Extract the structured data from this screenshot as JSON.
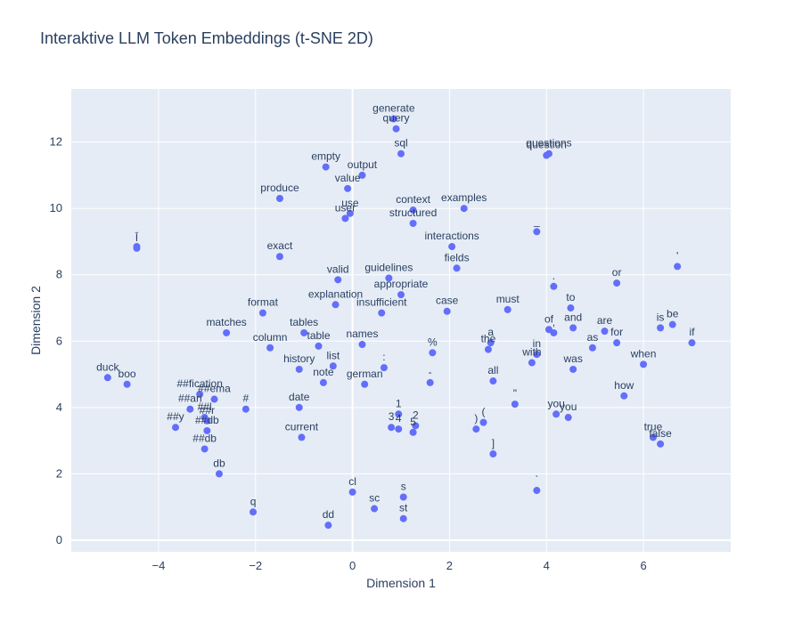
{
  "chart_data": {
    "type": "scatter",
    "title": "Interaktive LLM Token Embeddings (t-SNE 2D)",
    "xlabel": "Dimension 1",
    "ylabel": "Dimension 2",
    "xlim": [
      -5.8,
      7.8
    ],
    "ylim": [
      -0.35,
      13.6
    ],
    "xticks": [
      -4,
      -2,
      0,
      2,
      4,
      6
    ],
    "yticks": [
      0,
      2,
      4,
      6,
      8,
      10,
      12
    ],
    "xtick_labels": [
      "−4",
      "−2",
      "0",
      "2",
      "4",
      "6"
    ],
    "ytick_labels": [
      "0",
      "2",
      "4",
      "6",
      "8",
      "10",
      "12"
    ],
    "grid": true,
    "legend": "none",
    "colors": {
      "marker": "#636efa",
      "plot_bg": "#e5ecf6",
      "grid": "#ffffff",
      "text": "#2a3f5f"
    },
    "points": [
      {
        "label": "generate",
        "x": 0.85,
        "y": 12.7
      },
      {
        "label": "query",
        "x": 0.9,
        "y": 12.4
      },
      {
        "label": "sql",
        "x": 1.0,
        "y": 11.65
      },
      {
        "label": "questions",
        "x": 4.05,
        "y": 11.65
      },
      {
        "label": "question",
        "x": 4.0,
        "y": 11.6
      },
      {
        "label": "empty",
        "x": -0.55,
        "y": 11.25
      },
      {
        "label": "output",
        "x": 0.2,
        "y": 11.0
      },
      {
        "label": "value",
        "x": -0.1,
        "y": 10.6
      },
      {
        "label": "produce",
        "x": -1.5,
        "y": 10.3
      },
      {
        "label": "examples",
        "x": 2.3,
        "y": 10.0
      },
      {
        "label": "context",
        "x": 1.25,
        "y": 9.95
      },
      {
        "label": "use",
        "x": -0.05,
        "y": 9.85
      },
      {
        "label": "user",
        "x": -0.15,
        "y": 9.7
      },
      {
        "label": "structured",
        "x": 1.25,
        "y": 9.55
      },
      {
        "label": "_",
        "x": 3.8,
        "y": 9.3
      },
      {
        "label": "ī",
        "x": -4.45,
        "y": 8.85
      },
      {
        "label": "i",
        "x": -4.45,
        "y": 8.8
      },
      {
        "label": "interactions",
        "x": 2.05,
        "y": 8.85
      },
      {
        "label": "exact",
        "x": -1.5,
        "y": 8.55
      },
      {
        "label": "'",
        "x": 6.7,
        "y": 8.25
      },
      {
        "label": "fields",
        "x": 2.15,
        "y": 8.2
      },
      {
        "label": "guidelines",
        "x": 0.75,
        "y": 7.9
      },
      {
        "label": "valid",
        "x": -0.3,
        "y": 7.85
      },
      {
        "label": "or",
        "x": 5.45,
        "y": 7.75
      },
      {
        "label": ".",
        "x": 4.15,
        "y": 7.65
      },
      {
        "label": "appropriate",
        "x": 1.0,
        "y": 7.4
      },
      {
        "label": "to",
        "x": 4.5,
        "y": 7.0
      },
      {
        "label": "explanation",
        "x": -0.35,
        "y": 7.1
      },
      {
        "label": "must",
        "x": 3.2,
        "y": 6.95
      },
      {
        "label": "insufficient",
        "x": 0.6,
        "y": 6.85
      },
      {
        "label": "case",
        "x": 1.95,
        "y": 6.9
      },
      {
        "label": "format",
        "x": -1.85,
        "y": 6.85
      },
      {
        "label": "be",
        "x": 6.6,
        "y": 6.5
      },
      {
        "label": "is",
        "x": 6.35,
        "y": 6.4
      },
      {
        "label": "and",
        "x": 4.55,
        "y": 6.4
      },
      {
        "label": "of",
        "x": 4.05,
        "y": 6.35
      },
      {
        "label": ",",
        "x": 4.15,
        "y": 6.25
      },
      {
        "label": "are",
        "x": 5.2,
        "y": 6.3
      },
      {
        "label": "matches",
        "x": -2.6,
        "y": 6.25
      },
      {
        "label": "tables",
        "x": -1.0,
        "y": 6.25
      },
      {
        "label": "if",
        "x": 7.0,
        "y": 5.95
      },
      {
        "label": "for",
        "x": 5.45,
        "y": 5.95
      },
      {
        "label": "names",
        "x": 0.2,
        "y": 5.9
      },
      {
        "label": "table",
        "x": -0.7,
        "y": 5.85
      },
      {
        "label": "a",
        "x": 2.85,
        "y": 5.95
      },
      {
        "label": "the",
        "x": 2.8,
        "y": 5.75
      },
      {
        "label": "as",
        "x": 4.95,
        "y": 5.8
      },
      {
        "label": "column",
        "x": -1.7,
        "y": 5.8
      },
      {
        "label": "in",
        "x": 3.8,
        "y": 5.6
      },
      {
        "label": "with",
        "x": 3.7,
        "y": 5.35
      },
      {
        "label": "%",
        "x": 1.65,
        "y": 5.65
      },
      {
        "label": "when",
        "x": 6.0,
        "y": 5.3
      },
      {
        "label": "list",
        "x": -0.4,
        "y": 5.25
      },
      {
        "label": ":",
        "x": 0.65,
        "y": 5.2
      },
      {
        "label": "history",
        "x": -1.1,
        "y": 5.15
      },
      {
        "label": "was",
        "x": 4.55,
        "y": 5.15
      },
      {
        "label": "duck",
        "x": -5.05,
        "y": 4.9
      },
      {
        "label": "all",
        "x": 2.9,
        "y": 4.8
      },
      {
        "label": "-",
        "x": 1.6,
        "y": 4.75
      },
      {
        "label": "note",
        "x": -0.6,
        "y": 4.75
      },
      {
        "label": "german",
        "x": 0.25,
        "y": 4.7
      },
      {
        "label": "boo",
        "x": -4.65,
        "y": 4.7
      },
      {
        "label": "##fication",
        "x": -3.15,
        "y": 4.4
      },
      {
        "label": "how",
        "x": 5.6,
        "y": 4.35
      },
      {
        "label": "##ema",
        "x": -2.85,
        "y": 4.25
      },
      {
        "label": "\"",
        "x": 3.35,
        "y": 4.1
      },
      {
        "label": "##ari",
        "x": -3.35,
        "y": 3.95
      },
      {
        "label": "date",
        "x": -1.1,
        "y": 4.0
      },
      {
        "label": "#",
        "x": -2.2,
        "y": 3.95
      },
      {
        "label": "1",
        "x": 0.95,
        "y": 3.8
      },
      {
        "label": "you",
        "x": 4.2,
        "y": 3.8
      },
      {
        "label": "##l",
        "x": -3.05,
        "y": 3.7
      },
      {
        "label": "you",
        "x": 4.45,
        "y": 3.7
      },
      {
        "label": "##r",
        "x": -3.0,
        "y": 3.6
      },
      {
        "label": "(",
        "x": 2.7,
        "y": 3.55
      },
      {
        "label": "2",
        "x": 1.3,
        "y": 3.45
      },
      {
        "label": "##y",
        "x": -3.65,
        "y": 3.4
      },
      {
        "label": "3",
        "x": 0.8,
        "y": 3.4
      },
      {
        "label": ")",
        "x": 2.55,
        "y": 3.35
      },
      {
        "label": "4",
        "x": 0.95,
        "y": 3.35
      },
      {
        "label": "##db",
        "x": -3.0,
        "y": 3.3
      },
      {
        "label": "5",
        "x": 1.25,
        "y": 3.25
      },
      {
        "label": "current",
        "x": -1.05,
        "y": 3.1
      },
      {
        "label": "true",
        "x": 6.2,
        "y": 3.1
      },
      {
        "label": "false",
        "x": 6.35,
        "y": 2.9
      },
      {
        "label": "##db",
        "x": -3.05,
        "y": 2.75
      },
      {
        "label": "]",
        "x": 2.9,
        "y": 2.6
      },
      {
        "label": "db",
        "x": -2.75,
        "y": 2.0
      },
      {
        "label": "`",
        "x": 3.8,
        "y": 1.5
      },
      {
        "label": "cl",
        "x": 0.0,
        "y": 1.45
      },
      {
        "label": "s",
        "x": 1.05,
        "y": 1.3
      },
      {
        "label": "sc",
        "x": 0.45,
        "y": 0.95
      },
      {
        "label": "q",
        "x": -2.05,
        "y": 0.85
      },
      {
        "label": "st",
        "x": 1.05,
        "y": 0.65
      },
      {
        "label": "dd",
        "x": -0.5,
        "y": 0.45
      }
    ]
  }
}
